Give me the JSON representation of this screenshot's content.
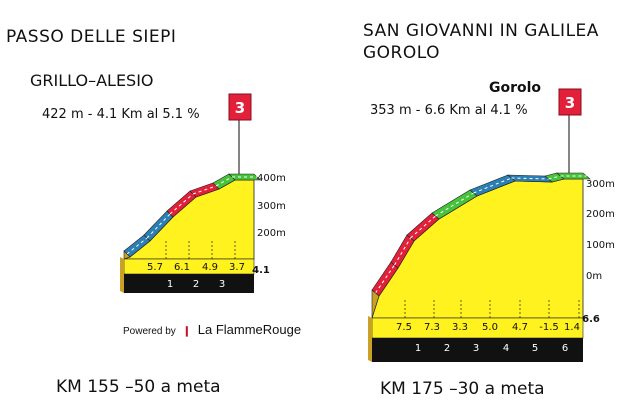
{
  "chart_data": [
    {
      "type": "area",
      "title": "PASSO DELLE SIEPI",
      "climb_name": "GRILLO–ALESIO",
      "summary": "422 m - 4.1 Km al 5.1 %",
      "category": "3",
      "km_labels": [
        "1",
        "2",
        "3",
        "4.1"
      ],
      "segment_gradients": [
        5.7,
        6.1,
        4.9,
        3.7
      ],
      "elevation_ticks": [
        "200m",
        "300m",
        "400m"
      ],
      "footer": "KM 155 –50 a meta"
    },
    {
      "type": "area",
      "title": "SAN GIOVANNI IN GALILEA",
      "subtitle": "GOROLO",
      "climb_name": "Gorolo",
      "summary": "353 m - 6.6 Km al 4.1 %",
      "category": "3",
      "km_labels": [
        "1",
        "2",
        "3",
        "4",
        "5",
        "6",
        "6.6"
      ],
      "segment_gradients": [
        7.5,
        7.3,
        3.3,
        5.0,
        4.7,
        -1.5,
        1.4
      ],
      "elevation_ticks": [
        "0m",
        "100m",
        "200m",
        "300m"
      ],
      "footer": "KM 175 –30 a meta"
    }
  ],
  "branding": {
    "powered_by": "Powered by",
    "logo_text": "La FlammeRouge"
  }
}
